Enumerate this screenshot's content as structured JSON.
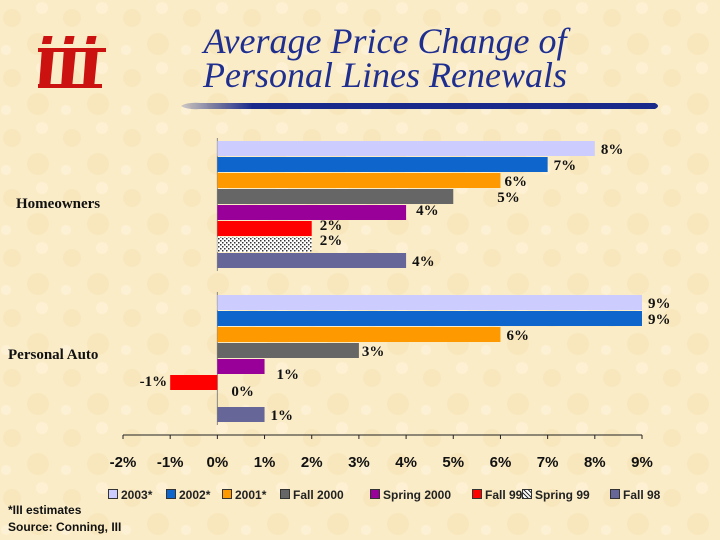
{
  "title": {
    "line1": "Average Price Change of",
    "line2": "Personal Lines Renewals"
  },
  "logo": {
    "icon": "iii-logo",
    "color": "#cc1111"
  },
  "colors": {
    "title": "#1f2f8f",
    "background": "#fbecc8"
  },
  "chart_data": {
    "type": "bar",
    "orientation": "horizontal",
    "categories": [
      "Homeowners",
      "Personal Auto"
    ],
    "series": [
      {
        "name": "2003*",
        "color": "#ccccff",
        "values": [
          8,
          9
        ],
        "labels": [
          "8%",
          "9%"
        ]
      },
      {
        "name": "2002*",
        "color": "#0e66cc",
        "values": [
          7,
          9
        ],
        "labels": [
          "7%",
          "9%"
        ]
      },
      {
        "name": "2001*",
        "color": "#ff9900",
        "values": [
          6,
          6
        ],
        "labels": [
          "6%",
          "6%"
        ]
      },
      {
        "name": "Fall 2000",
        "color": "#666666",
        "values": [
          5,
          3
        ],
        "labels": [
          "5%",
          "3%"
        ]
      },
      {
        "name": "Spring 2000",
        "color": "#990099",
        "values": [
          4,
          1
        ],
        "labels": [
          "4%",
          "1%"
        ]
      },
      {
        "name": "Fall 99",
        "color": "#ff0000",
        "values": [
          2,
          -1
        ],
        "labels": [
          "2%",
          "-1%"
        ]
      },
      {
        "name": "Spring 99",
        "color": "#ffffff",
        "pattern": "dotted",
        "values": [
          2,
          0
        ],
        "labels": [
          "2%",
          "0%"
        ]
      },
      {
        "name": "Fall 98",
        "color": "#666699",
        "values": [
          4,
          1
        ],
        "labels": [
          "4%",
          "1%"
        ]
      }
    ],
    "xlim": [
      -2,
      9
    ],
    "xticks": [
      -2,
      -1,
      0,
      1,
      2,
      3,
      4,
      5,
      6,
      7,
      8,
      9
    ],
    "xtick_labels": [
      "-2%",
      "-1%",
      "0%",
      "1%",
      "2%",
      "3%",
      "4%",
      "5%",
      "6%",
      "7%",
      "8%",
      "9%"
    ],
    "grid": false,
    "legend_position": "bottom"
  },
  "footnote": {
    "line1": "*III estimates",
    "line2": "Source:  Conning, III"
  }
}
